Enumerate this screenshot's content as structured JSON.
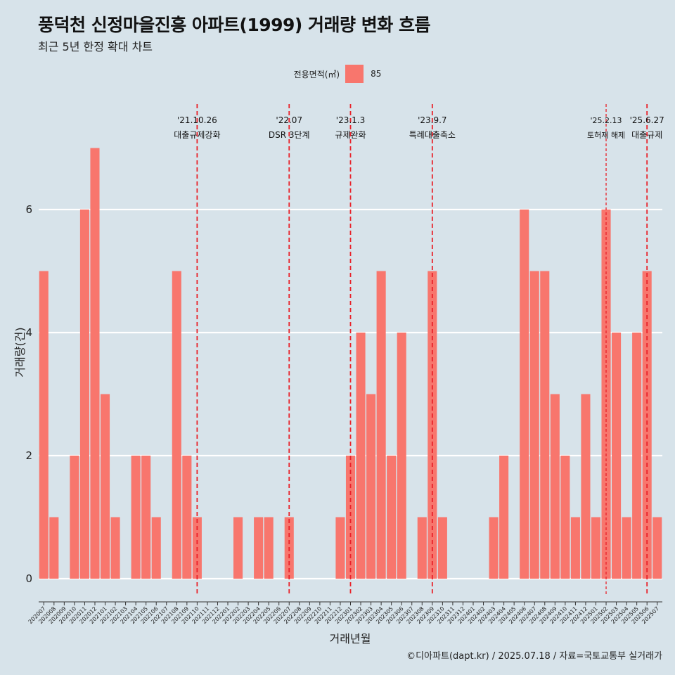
{
  "title": "풍덕천 신정마을진흥 아파트(1999) 거래량 변화 흐름",
  "subtitle": "최근 5년 한정 확대 차트",
  "legend": {
    "title": "전용면적(㎡)",
    "label": "85",
    "color": "#f8766d"
  },
  "caption": "©디아파트(dapt.kr) / 2025.07.18 / 자료=국토교통부 실거래가",
  "chart_data": {
    "type": "bar",
    "title": "풍덕천 신정마을진흥 아파트(1999) 거래량 변화 흐름",
    "xlabel": "거래년월",
    "ylabel": "거래량(건)",
    "ylim": [
      0,
      7
    ],
    "yticks": [
      0,
      2,
      4,
      6
    ],
    "grid": true,
    "bar_color": "#f8766d",
    "legend_position": "top",
    "categories": [
      "202007",
      "202008",
      "202009",
      "202010",
      "202011",
      "202012",
      "202101",
      "202102",
      "202103",
      "202104",
      "202105",
      "202106",
      "202107",
      "202108",
      "202109",
      "202110",
      "202111",
      "202112",
      "202201",
      "202202",
      "202203",
      "202204",
      "202205",
      "202206",
      "202207",
      "202208",
      "202209",
      "202210",
      "202211",
      "202212",
      "202301",
      "202302",
      "202303",
      "202304",
      "202305",
      "202306",
      "202307",
      "202308",
      "202309",
      "202310",
      "202311",
      "202312",
      "202401",
      "202402",
      "202403",
      "202404",
      "202405",
      "202406",
      "202407",
      "202408",
      "202409",
      "202410",
      "202411",
      "202412",
      "202501",
      "202502",
      "202503",
      "202504",
      "202505",
      "202506",
      "202507"
    ],
    "series": [
      {
        "name": "85",
        "values": [
          5,
          1,
          0,
          2,
          6,
          7,
          3,
          1,
          0,
          2,
          2,
          1,
          0,
          5,
          2,
          1,
          0,
          0,
          0,
          1,
          0,
          1,
          1,
          0,
          1,
          0,
          0,
          0,
          0,
          1,
          2,
          4,
          3,
          5,
          2,
          4,
          0,
          1,
          5,
          1,
          0,
          0,
          0,
          0,
          1,
          2,
          0,
          6,
          5,
          5,
          3,
          2,
          1,
          3,
          1,
          6,
          4,
          1,
          4,
          5,
          1
        ]
      }
    ],
    "annotations": [
      {
        "category": "202110",
        "date": "'21.10.26",
        "label": "대출규제강화"
      },
      {
        "category": "202207",
        "date": "'22.07",
        "label": "DSR 3단계"
      },
      {
        "category": "202301",
        "date": "'23.1.3",
        "label": "규제완화"
      },
      {
        "category": "202309",
        "date": "'23.9.7",
        "label": "특례대출축소"
      },
      {
        "category": "202502",
        "date": "'25.2.13",
        "label": "토허제 해제"
      },
      {
        "category": "202506",
        "date": "'25.6.27",
        "label": "대출규제"
      }
    ]
  }
}
